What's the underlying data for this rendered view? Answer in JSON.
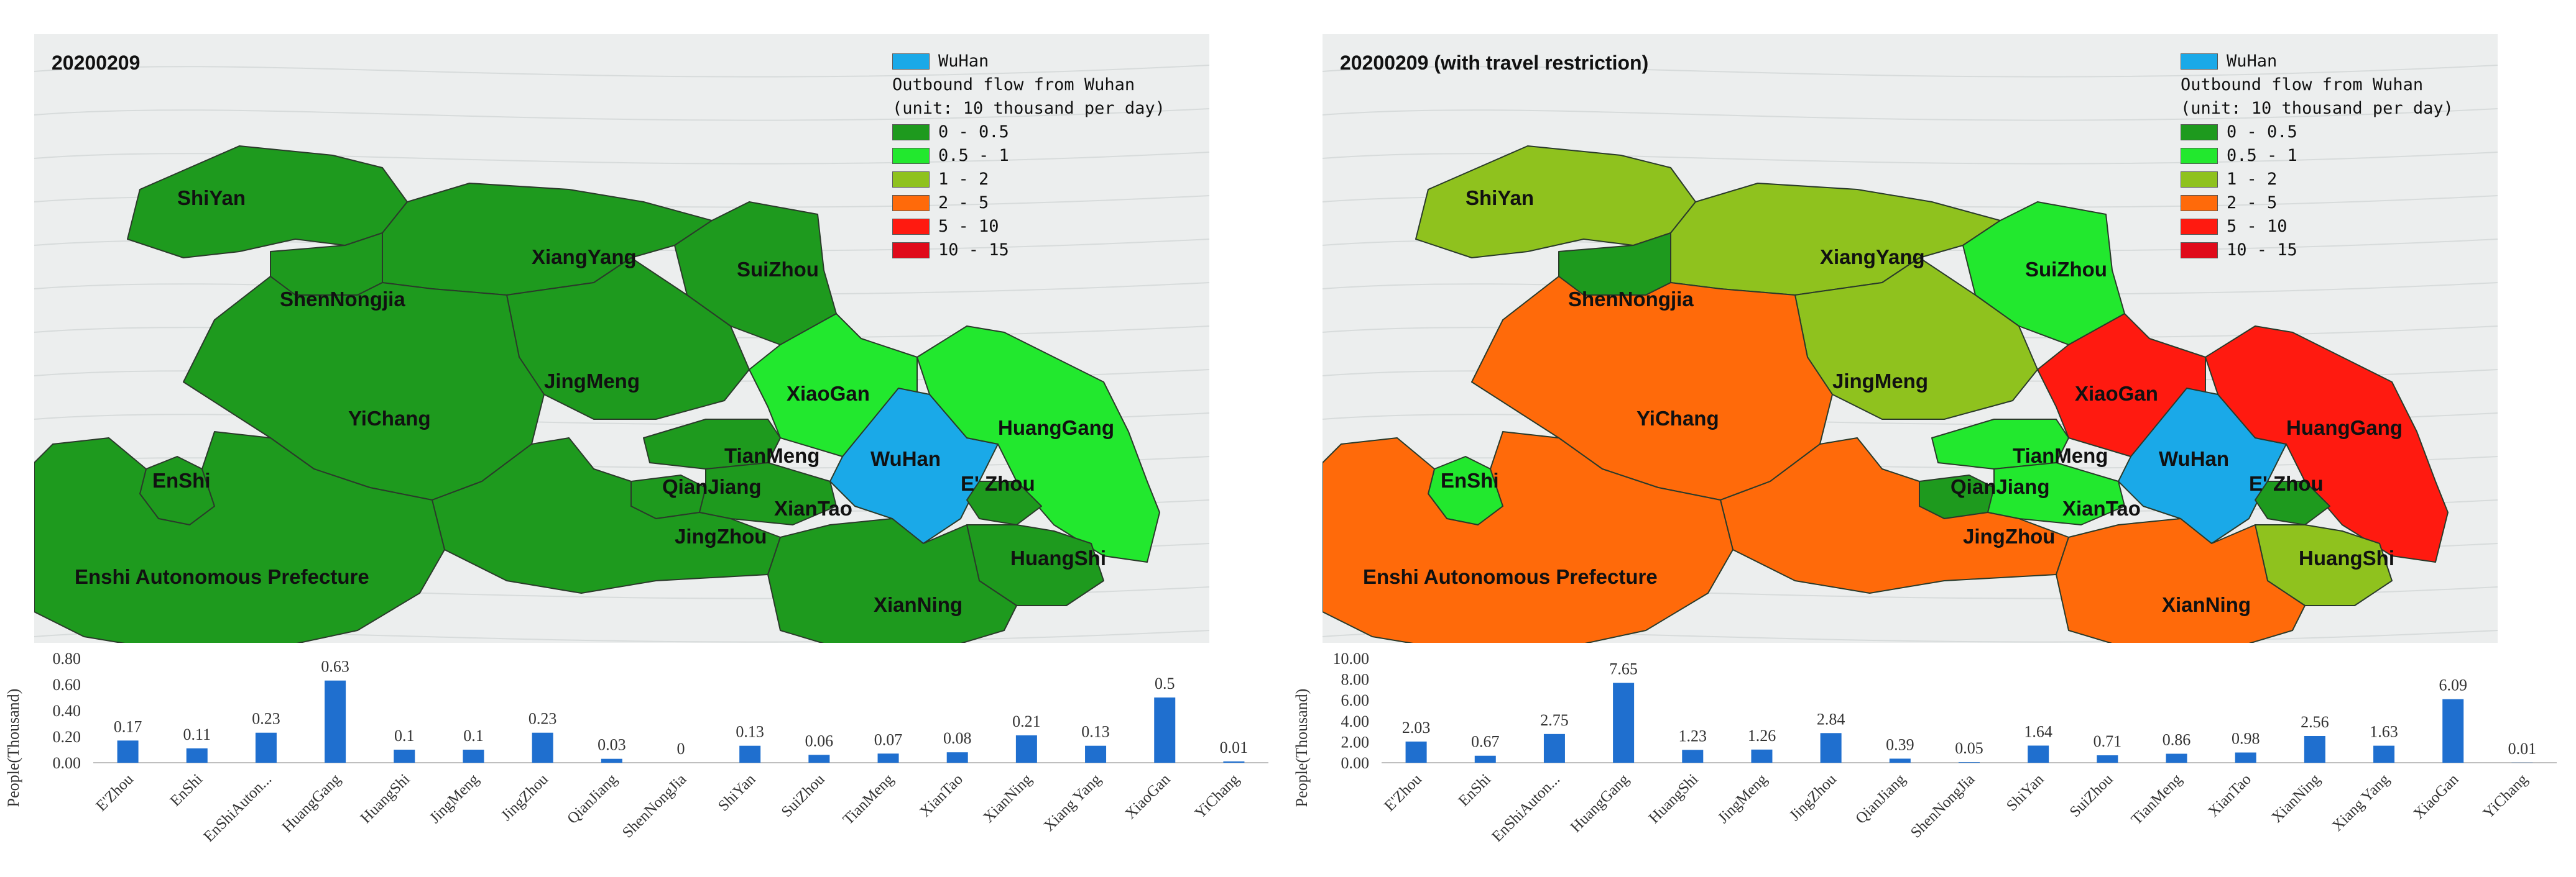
{
  "legend": {
    "wuhan_label": "WuHan",
    "title_line1": "Outbound flow from Wuhan",
    "title_line2": "(unit: 10 thousand per day)",
    "wuhan_color": "#1aa9e8",
    "classes": [
      {
        "label": "0 - 0.5",
        "color": "#1e9a1e"
      },
      {
        "label": "0.5 - 1",
        "color": "#22e82e"
      },
      {
        "label": "1 - 2",
        "color": "#8fc21e"
      },
      {
        "label": "2 - 5",
        "color": "#ff6a0a"
      },
      {
        "label": "5 - 10",
        "color": "#ff1a10"
      },
      {
        "label": "10 - 15",
        "color": "#e00a1a"
      }
    ]
  },
  "region_names": {
    "ShiYan": "ShiYan",
    "XiangYang": "XiangYang",
    "SuiZhou": "SuiZhou",
    "ShenNongjia": "ShenNongjia",
    "JingMeng": "JingMeng",
    "XiaoGan": "XiaoGan",
    "YiChang": "YiChang",
    "TianMeng": "TianMeng",
    "WuHan": "WuHan",
    "HuangGang": "HuangGang",
    "EnShi": "EnShi",
    "QianJiang": "QianJiang",
    "EZhou": "E' Zhou",
    "XianTao": "XianTao",
    "JingZhou": "JingZhou",
    "HuangShi": "HuangShi",
    "EnshiPref": "Enshi Autonomous Prefecture",
    "XianNing": "XianNing"
  },
  "panels": [
    {
      "date_label": "20200209",
      "region_class": {
        "ShiYan": 0,
        "XiangYang": 0,
        "SuiZhou": 0,
        "ShenNongjia": 0,
        "JingMeng": 0,
        "XiaoGan": 1,
        "YiChang": 0,
        "TianMeng": 0,
        "HuangGang": 1,
        "EnShi": 0,
        "QianJiang": 0,
        "EZhou": 0,
        "XianTao": 0,
        "JingZhou": 0,
        "HuangShi": 0,
        "EnshiPref": 0,
        "XianNing": 0
      }
    },
    {
      "date_label": "20200209 (with travel restriction)",
      "region_class": {
        "ShiYan": 2,
        "XiangYang": 2,
        "SuiZhou": 1,
        "ShenNongjia": 0,
        "JingMeng": 2,
        "XiaoGan": 4,
        "YiChang": 3,
        "TianMeng": 1,
        "HuangGang": 4,
        "EnShi": 1,
        "QianJiang": 0,
        "EZhou": 0,
        "XianTao": 1,
        "JingZhou": 3,
        "HuangShi": 2,
        "EnshiPref": 3,
        "XianNing": 3
      }
    }
  ],
  "chart_data": [
    {
      "type": "bar",
      "title": "",
      "xlabel": "",
      "ylabel": "People(Thousand)",
      "ylim": [
        0,
        0.8
      ],
      "yticks": [
        "0.00",
        "0.20",
        "0.40",
        "0.60",
        "0.80"
      ],
      "bar_color": "#1f6fcf",
      "categories": [
        "E'Zhou",
        "EnShi",
        "EnShiAuton...",
        "HuangGang",
        "HuangShi",
        "JingMeng",
        "JingZhou",
        "QianJiang",
        "ShenNongJia",
        "ShiYan",
        "SuiZhou",
        "TianMeng",
        "XianTao",
        "XianNing",
        "Xiang Yang",
        "XiaoGan",
        "YiChang"
      ],
      "values": [
        0.17,
        0.11,
        0.23,
        0.63,
        0.1,
        0.1,
        0.23,
        0.03,
        0,
        0.13,
        0.06,
        0.07,
        0.08,
        0.21,
        0.13,
        0.5,
        0.01
      ],
      "value_labels": [
        "0.17",
        "0.11",
        "0.23",
        "0.63",
        "0.1",
        "0.1",
        "0.23",
        "0.03",
        "0",
        "0.13",
        "0.06",
        "0.07",
        "0.08",
        "0.21",
        "0.13",
        "0.5",
        "0.01"
      ]
    },
    {
      "type": "bar",
      "title": "",
      "xlabel": "",
      "ylabel": "People(Thousand)",
      "ylim": [
        0,
        10
      ],
      "yticks": [
        "0.00",
        "2.00",
        "4.00",
        "6.00",
        "8.00",
        "10.00"
      ],
      "bar_color": "#1f6fcf",
      "categories": [
        "E'Zhou",
        "EnShi",
        "EnShiAuton...",
        "HuangGang",
        "HuangShi",
        "JingMeng",
        "JingZhou",
        "QianJiang",
        "ShenNongJia",
        "ShiYan",
        "SuiZhou",
        "TianMeng",
        "XianTao",
        "XianNing",
        "Xiang Yang",
        "XiaoGan",
        "YiChang"
      ],
      "values": [
        2.03,
        0.67,
        2.75,
        7.65,
        1.23,
        1.26,
        2.84,
        0.39,
        0.05,
        1.64,
        0.71,
        0.86,
        0.98,
        2.56,
        1.63,
        6.09,
        0.01
      ],
      "value_labels": [
        "2.03",
        "0.67",
        "2.75",
        "7.65",
        "1.23",
        "1.26",
        "2.84",
        "0.39",
        "0.05",
        "1.64",
        "0.71",
        "0.86",
        "0.98",
        "2.56",
        "1.63",
        "6.09",
        "0.01"
      ]
    }
  ]
}
